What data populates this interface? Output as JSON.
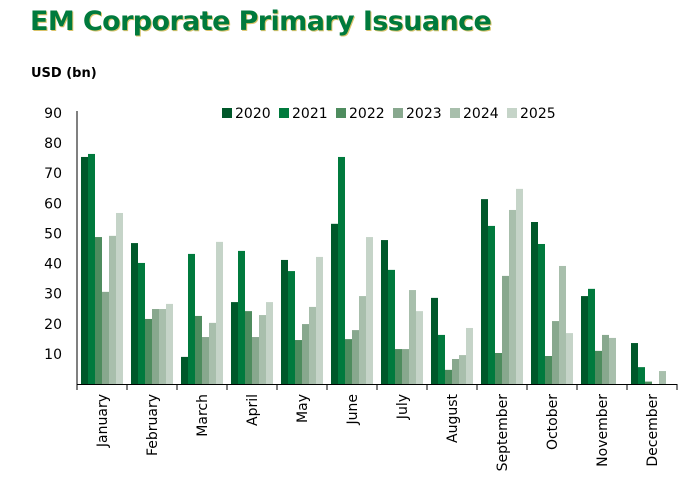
{
  "title": "EM Corporate Primary Issuance",
  "unit_label": "USD (bn)",
  "chart_data": {
    "type": "bar",
    "title": "EM Corporate Primary Issuance",
    "xlabel": "",
    "ylabel": "USD (bn)",
    "ylim": [
      0,
      90
    ],
    "yticks": [
      10,
      20,
      30,
      40,
      50,
      60,
      70,
      80,
      90
    ],
    "grid": false,
    "legend_position": "top-right",
    "categories": [
      "January",
      "February",
      "March",
      "April",
      "May",
      "June",
      "July",
      "August",
      "September",
      "October",
      "November",
      "December"
    ],
    "series": [
      {
        "name": "2020",
        "color": "#00582A",
        "values": [
          75.4,
          46.8,
          9.0,
          27.2,
          41.2,
          53.2,
          47.8,
          28.6,
          61.4,
          53.8,
          29.2,
          13.6
        ]
      },
      {
        "name": "2021",
        "color": "#007A3D",
        "values": [
          76.4,
          40.2,
          43.2,
          44.2,
          37.5,
          75.4,
          37.9,
          16.3,
          52.5,
          46.5,
          31.6,
          5.6
        ]
      },
      {
        "name": "2022",
        "color": "#4E8C5E",
        "values": [
          48.8,
          21.6,
          22.6,
          24.2,
          14.6,
          14.9,
          11.6,
          4.7,
          10.3,
          9.3,
          11.0,
          0.8
        ]
      },
      {
        "name": "2023",
        "color": "#88A88E",
        "values": [
          30.6,
          24.9,
          15.6,
          15.6,
          19.9,
          17.9,
          11.6,
          8.3,
          35.9,
          20.9,
          16.3,
          0
        ]
      },
      {
        "name": "2024",
        "color": "#A8BFAC",
        "values": [
          49.2,
          24.9,
          20.3,
          22.9,
          25.6,
          29.2,
          31.2,
          9.6,
          57.8,
          39.2,
          15.3,
          4.3
        ]
      },
      {
        "name": "2025",
        "color": "#C5D4C8",
        "values": [
          56.8,
          26.6,
          47.2,
          27.2,
          42.2,
          48.8,
          24.2,
          18.6,
          64.8,
          16.9,
          0,
          0
        ]
      }
    ]
  }
}
